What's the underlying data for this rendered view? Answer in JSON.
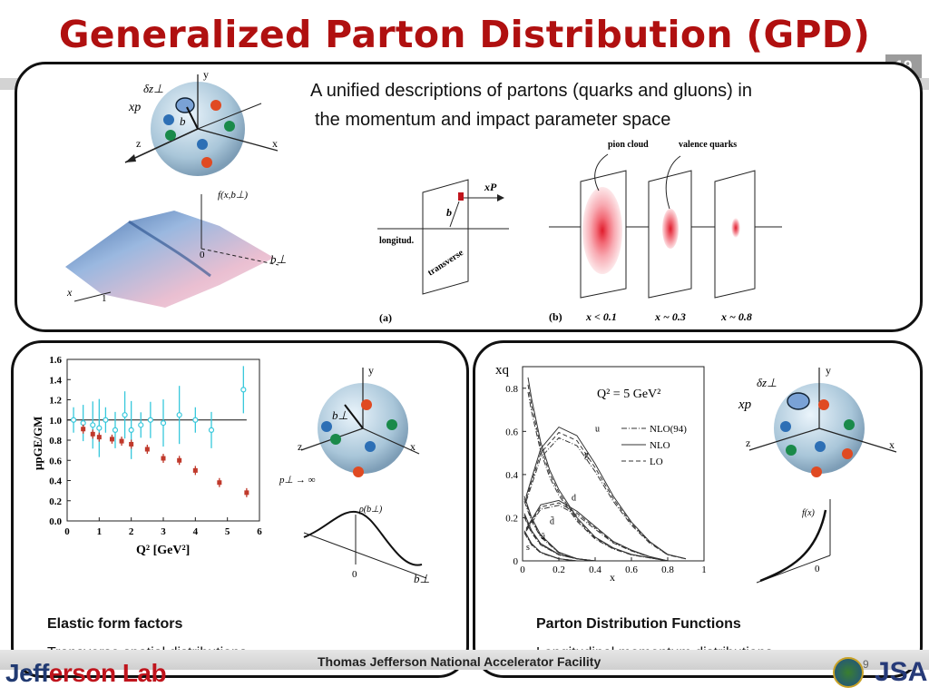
{
  "slide": {
    "title": "Generalized Parton Distribution (GPD)",
    "number": "19",
    "intro_line1": "A unified descriptions of partons (quarks and gluons) in",
    "intro_line2": "the momentum and impact parameter space"
  },
  "top_panel": {
    "sphere_labels": {
      "dz": "δz⊥",
      "xp": "xp",
      "b": "b",
      "y": "y",
      "z": "z",
      "x": "x"
    },
    "surface_labels": {
      "f": "f(x,b⊥)",
      "x": "x",
      "zero": "0",
      "one": "1",
      "b": "b⊥"
    },
    "diagram_a": {
      "xP": "xP",
      "b": "b",
      "longitud": "longitud.",
      "transverse": "transverse",
      "tag": "(a)"
    },
    "diagram_b": {
      "tag": "(b)",
      "pion_cloud": "pion cloud",
      "valence_quarks": "valence quarks",
      "x1": "x < 0.1",
      "x2": "x ~ 0.3",
      "x3": "x ~ 0.8"
    }
  },
  "left_panel": {
    "title": "Elastic form factors",
    "subtitle": "Transverse spatial distributions",
    "plot_ylabel": "μpGE/GM",
    "plot_xlabel": "Q² [GeV²]",
    "plot_yticks": [
      "1.6",
      "1.4",
      "1.2",
      "1.0",
      "0.8",
      "0.6",
      "0.4",
      "0.2",
      "0.0"
    ],
    "plot_xticks": [
      "0",
      "1",
      "2",
      "3",
      "4",
      "5",
      "6"
    ],
    "sphere_labels": {
      "y": "y",
      "z": "z",
      "x": "x",
      "b": "b⊥",
      "p": "p⊥ → ∞"
    },
    "density_labels": {
      "rho": "ρ(b⊥)",
      "zero": "0",
      "b": "b⊥"
    }
  },
  "right_panel": {
    "title": "Parton Distribution Functions",
    "subtitle": "Longitudinal momentum distributions",
    "plot_ylabel": "xq",
    "plot_xlabel": "x",
    "plot_q2": "Q² = 5 GeV²",
    "plot_yticks": [
      "0.8",
      "0.6",
      "0.4",
      "0.2",
      "0"
    ],
    "plot_xticks": [
      "0",
      "0.2",
      "0.4",
      "0.6",
      "0.8",
      "1"
    ],
    "legend": [
      "NLO(94)",
      "NLO",
      "LO"
    ],
    "curve_labels": [
      "u",
      "g",
      "d",
      "d̄",
      "ū",
      "s"
    ],
    "sphere_labels": {
      "dz": "δz⊥",
      "xp": "xp",
      "y": "y",
      "z": "z",
      "x": "x"
    },
    "fx_labels": {
      "f": "f(x)",
      "zero": "0"
    }
  },
  "footer": {
    "lab_name_part1": "Jeff",
    "lab_name_part2": "erson Lab",
    "facility": "Thomas Jefferson National Accelerator Facility",
    "small_num": "9",
    "jsa": "JSA"
  },
  "chart_data": [
    {
      "type": "scatter",
      "title": "",
      "xlabel": "Q² [GeV²]",
      "ylabel": "μpGE/GM",
      "xlim": [
        0,
        6
      ],
      "ylim": [
        0,
        1.6
      ],
      "series": [
        {
          "color": "#37c8dc",
          "x": [
            0.2,
            0.5,
            0.8,
            1.0,
            1.2,
            1.5,
            1.8,
            2.0,
            2.3,
            2.6,
            3.0,
            3.5,
            4.0,
            4.5,
            5.5
          ],
          "y": [
            1.0,
            0.97,
            0.95,
            0.92,
            1.0,
            0.9,
            1.05,
            0.9,
            0.95,
            1.0,
            0.97,
            1.05,
            1.0,
            0.9,
            1.3
          ]
        },
        {
          "color": "#c0392b",
          "x": [
            0.5,
            0.8,
            1.0,
            1.4,
            1.7,
            2.0,
            2.5,
            3.0,
            3.5,
            4.0,
            4.75,
            5.6
          ],
          "y": [
            0.91,
            0.86,
            0.83,
            0.81,
            0.79,
            0.76,
            0.71,
            0.62,
            0.6,
            0.5,
            0.38,
            0.28
          ]
        }
      ]
    },
    {
      "type": "line",
      "title": "Q² = 5 GeV²",
      "xlabel": "x",
      "ylabel": "xq",
      "xlim": [
        0,
        1
      ],
      "ylim": [
        0,
        0.9
      ],
      "series": [
        {
          "name": "u",
          "x": [
            0.02,
            0.1,
            0.2,
            0.3,
            0.4,
            0.5,
            0.6,
            0.7,
            0.8,
            0.9
          ],
          "y": [
            0.3,
            0.52,
            0.62,
            0.58,
            0.45,
            0.3,
            0.18,
            0.09,
            0.03,
            0.01
          ]
        },
        {
          "name": "g",
          "x": [
            0.03,
            0.05,
            0.1,
            0.15,
            0.2,
            0.3,
            0.4,
            0.5,
            0.6,
            0.8
          ],
          "y": [
            0.85,
            0.75,
            0.55,
            0.42,
            0.33,
            0.2,
            0.11,
            0.06,
            0.03,
            0.0
          ]
        },
        {
          "name": "d",
          "x": [
            0.02,
            0.1,
            0.2,
            0.3,
            0.4,
            0.5,
            0.6,
            0.7,
            0.8
          ],
          "y": [
            0.15,
            0.26,
            0.28,
            0.23,
            0.16,
            0.09,
            0.05,
            0.02,
            0.0
          ]
        },
        {
          "name": "d̄",
          "x": [
            0.01,
            0.05,
            0.1,
            0.2,
            0.3,
            0.4
          ],
          "y": [
            0.3,
            0.2,
            0.12,
            0.04,
            0.01,
            0.0
          ]
        },
        {
          "name": "ū",
          "x": [
            0.01,
            0.05,
            0.1,
            0.2,
            0.3,
            0.4
          ],
          "y": [
            0.22,
            0.14,
            0.08,
            0.03,
            0.01,
            0.0
          ]
        },
        {
          "name": "s",
          "x": [
            0.01,
            0.05,
            0.1,
            0.2,
            0.3
          ],
          "y": [
            0.14,
            0.08,
            0.04,
            0.01,
            0.0
          ]
        }
      ]
    }
  ]
}
